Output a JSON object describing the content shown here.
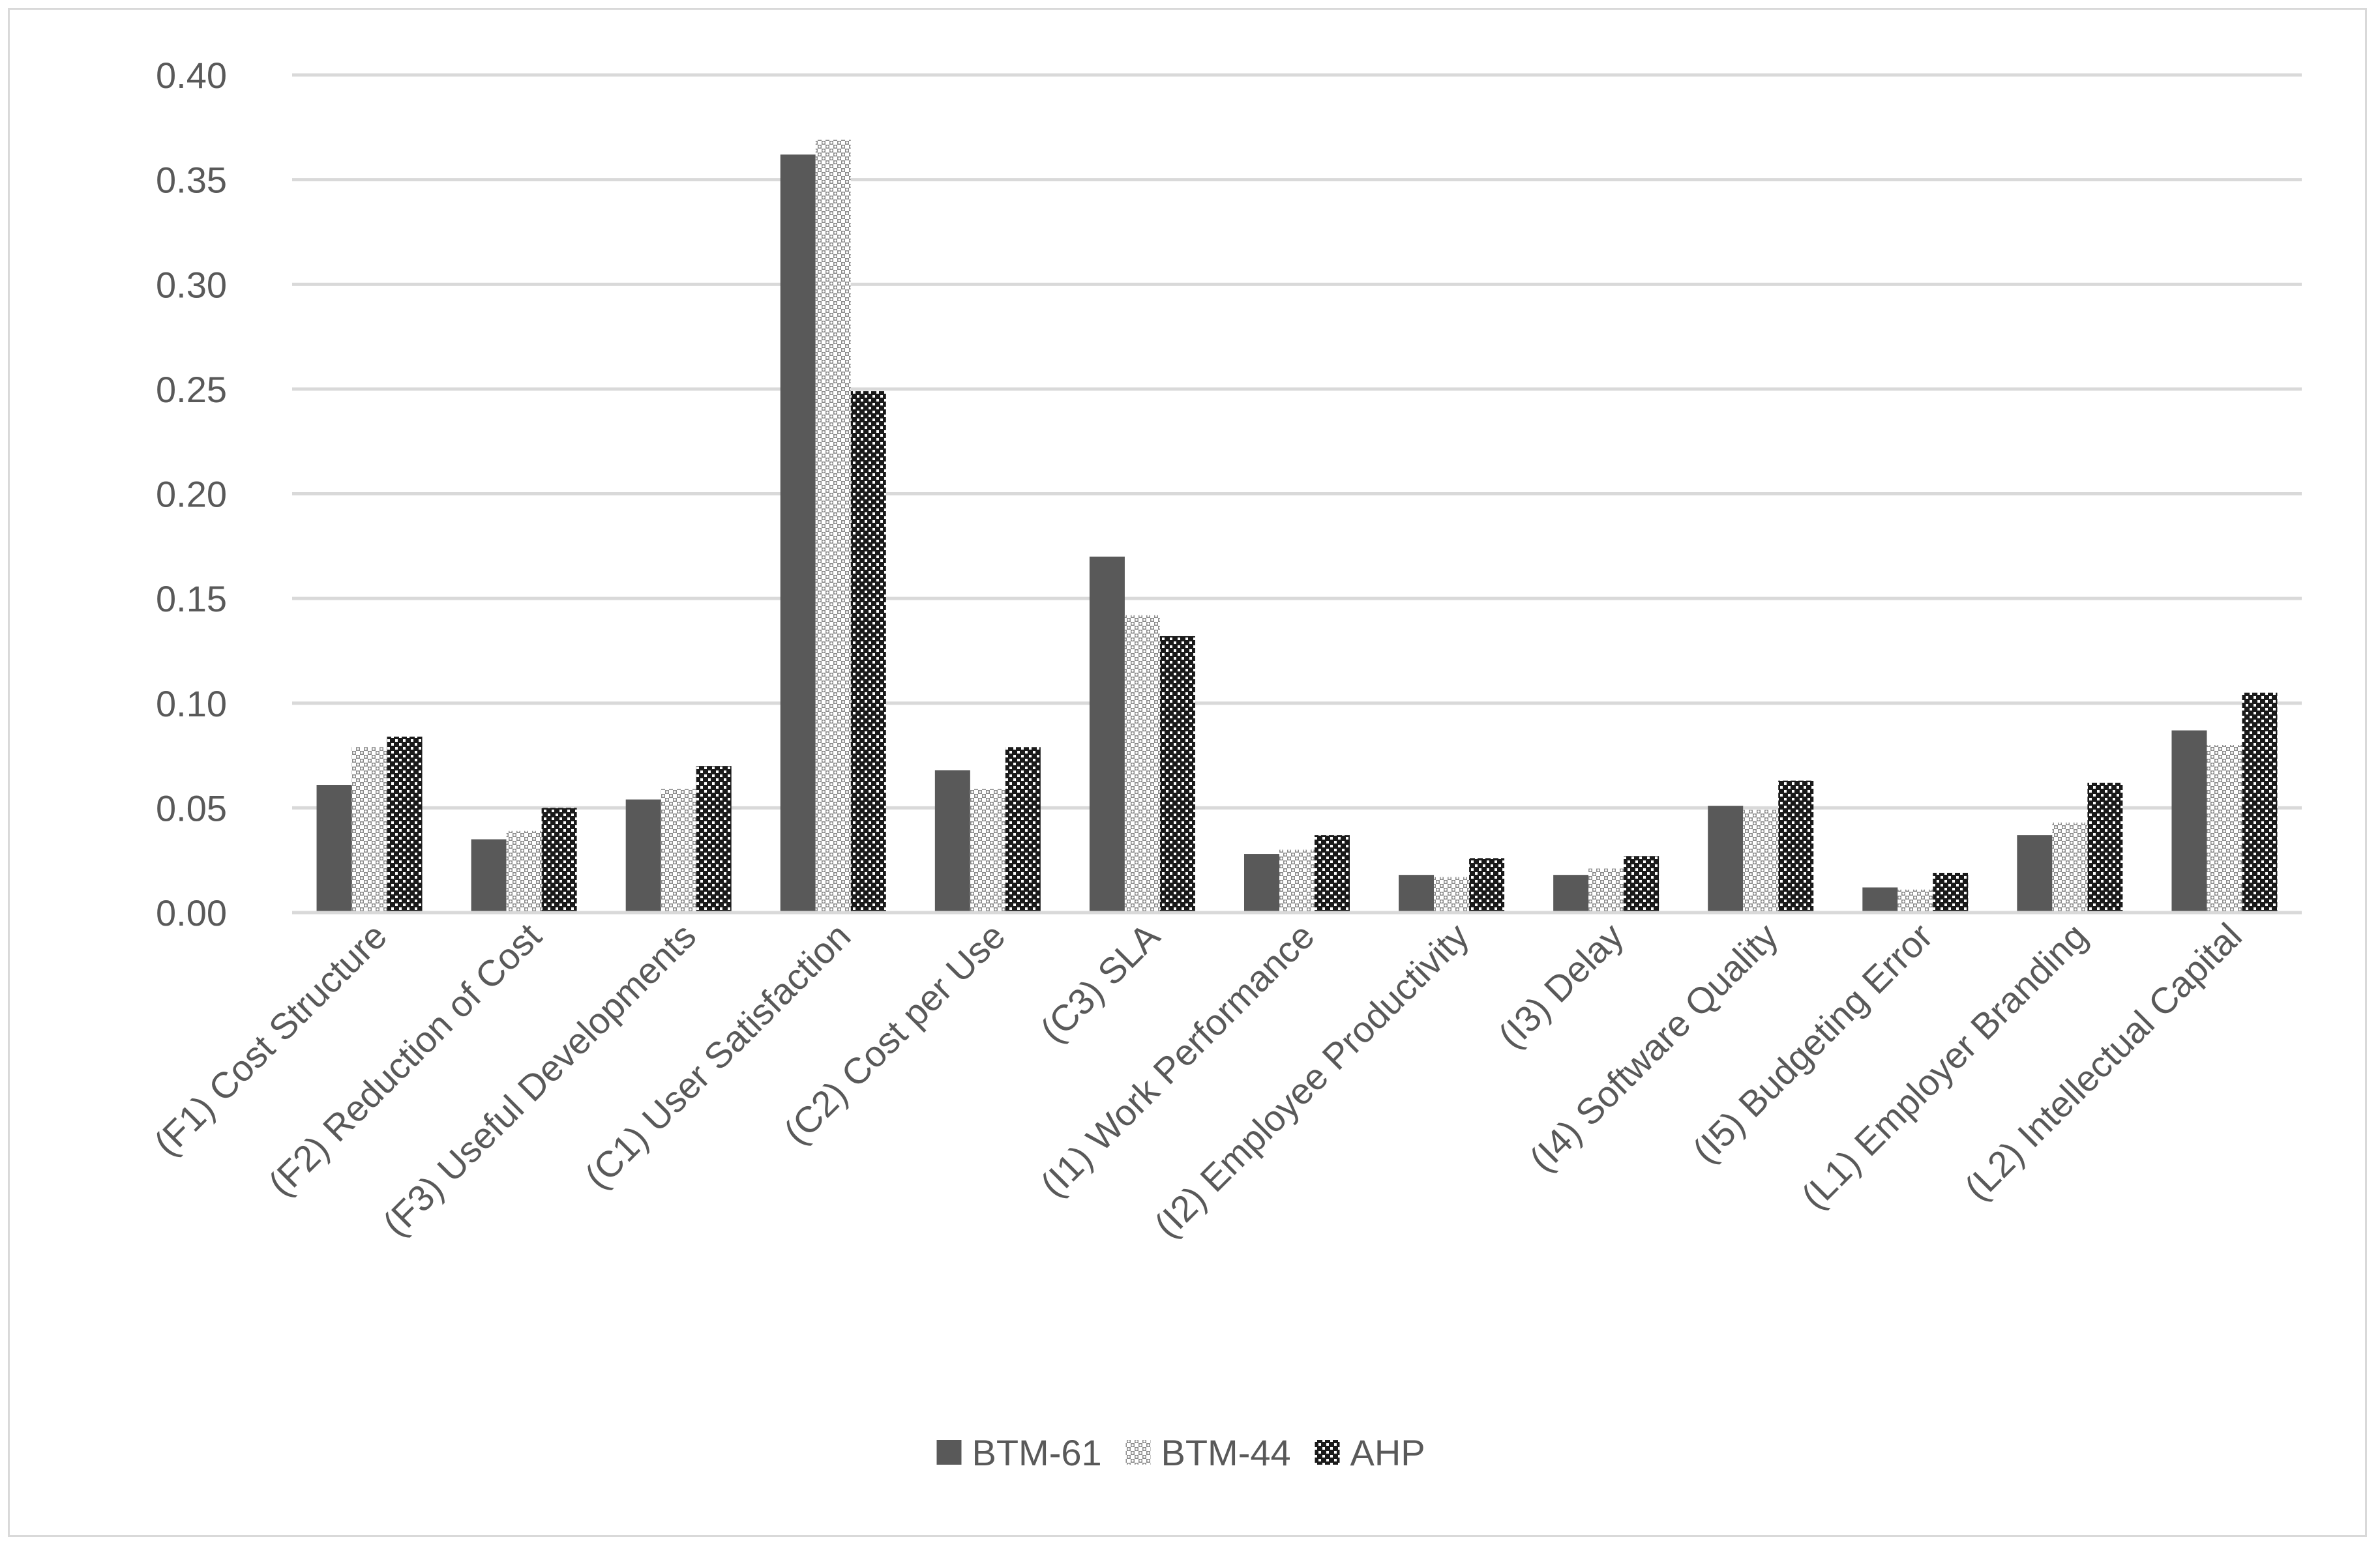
{
  "chart_data": {
    "type": "bar",
    "categories": [
      "(F1) Cost Structure",
      "(F2) Reduction of Cost",
      "(F3) Useful Developments",
      "(C1) User Satisfaction",
      "(C2) Cost per Use",
      "(C3) SLA",
      "(I1) Work Performance",
      "(I2) Employee Productivity",
      "(I3) Delay",
      "(I4) Software Quality",
      "(I5) Budgeting Error",
      "(L1) Employer Branding",
      "(L2) Intellectual Capital"
    ],
    "series": [
      {
        "name": "BTM-61",
        "pattern": "solid",
        "color": "#595959",
        "values": [
          0.061,
          0.035,
          0.054,
          0.362,
          0.068,
          0.17,
          0.028,
          0.018,
          0.018,
          0.051,
          0.012,
          0.037,
          0.087
        ]
      },
      {
        "name": "BTM-44",
        "pattern": "light-check",
        "color": "#7f7f7f",
        "values": [
          0.079,
          0.039,
          0.059,
          0.369,
          0.059,
          0.142,
          0.03,
          0.017,
          0.021,
          0.049,
          0.011,
          0.043,
          0.08
        ]
      },
      {
        "name": "AHP",
        "pattern": "dark-check",
        "color": "#262626",
        "values": [
          0.084,
          0.05,
          0.07,
          0.249,
          0.079,
          0.132,
          0.037,
          0.026,
          0.027,
          0.063,
          0.019,
          0.062,
          0.105
        ]
      }
    ],
    "y_ticks": [
      "0.00",
      "0.05",
      "0.10",
      "0.15",
      "0.20",
      "0.25",
      "0.30",
      "0.35",
      "0.40"
    ],
    "ylim": [
      0,
      0.4
    ],
    "ystep": 0.05,
    "grid": true,
    "legend_position": "bottom",
    "title": "",
    "xlabel": "",
    "ylabel": ""
  }
}
